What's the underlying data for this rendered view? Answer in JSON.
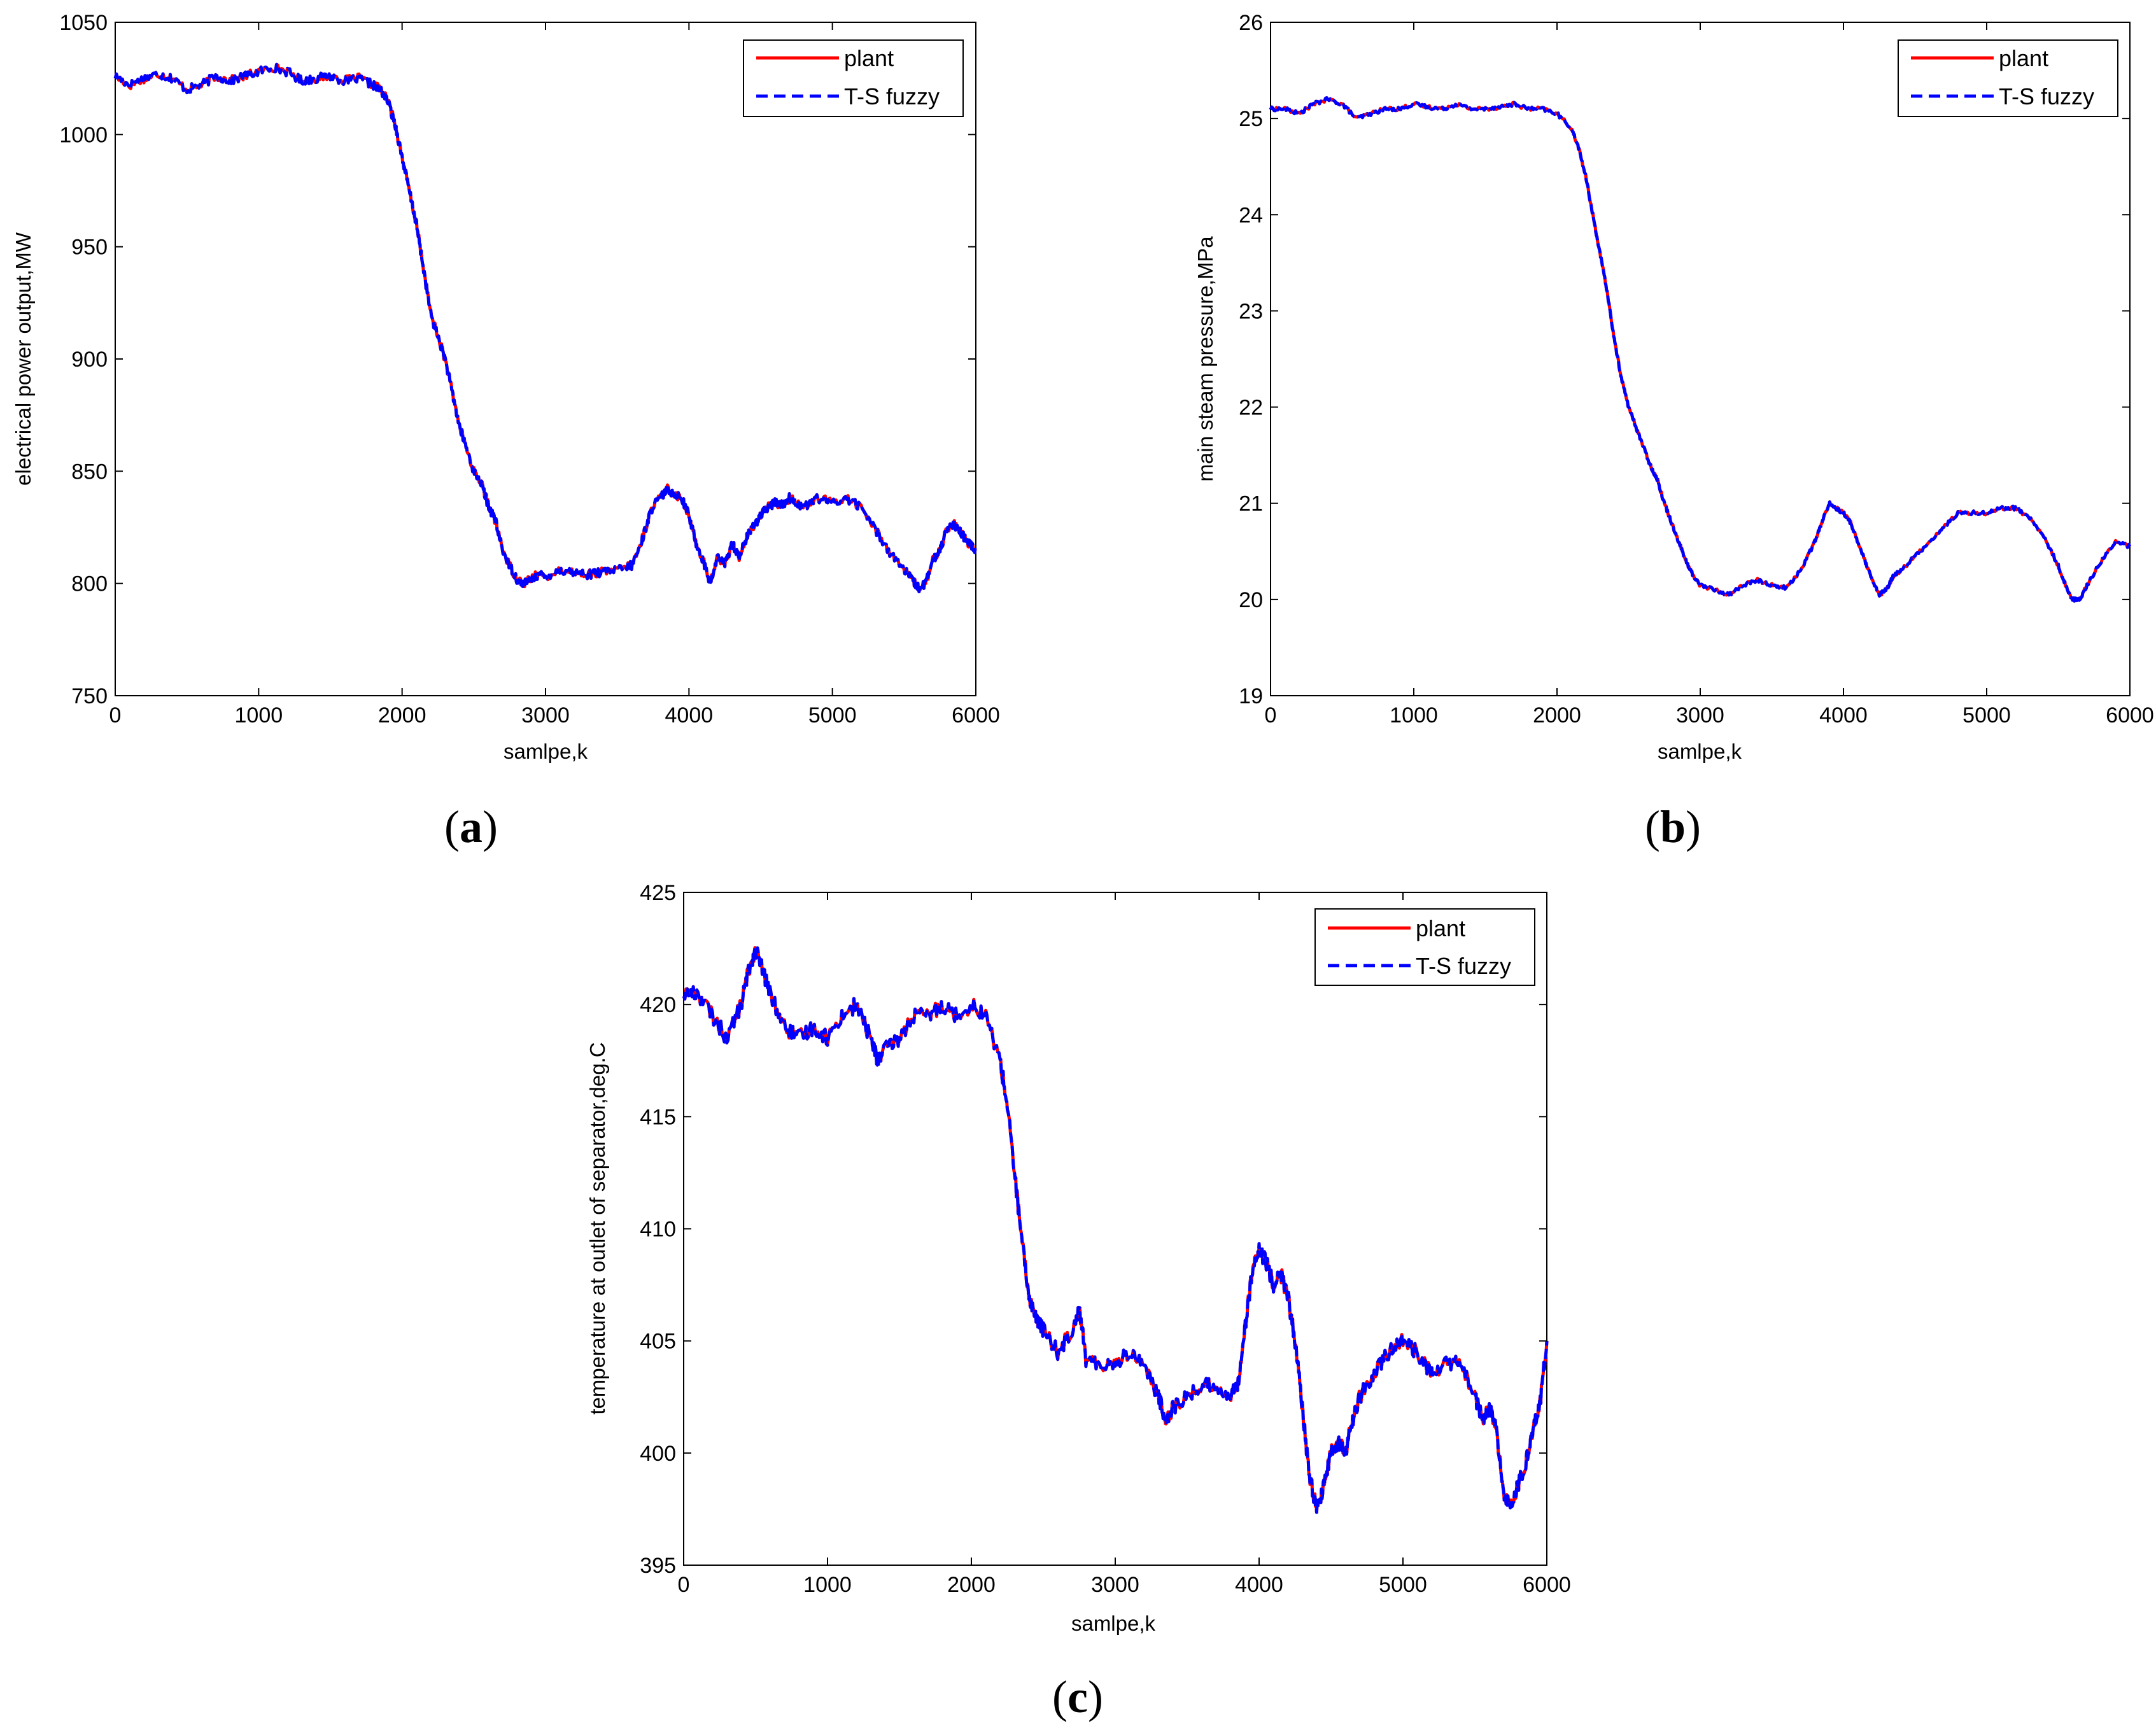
{
  "legend_labels": [
    "plant",
    "T-S fuzzy"
  ],
  "colors": {
    "plant": "#ff0000",
    "ts_fuzzy": "#0000ff",
    "axes": "#000000"
  },
  "chart_data": [
    {
      "id": "a",
      "type": "line",
      "caption_letter": "a",
      "xlabel": "samlpe,k",
      "ylabel": "electrical power output,MW",
      "xlim": [
        0,
        6000
      ],
      "ylim": [
        750,
        1050
      ],
      "xticks": [
        0,
        1000,
        2000,
        3000,
        4000,
        5000,
        6000
      ],
      "yticks": [
        750,
        800,
        850,
        900,
        950,
        1000,
        1050
      ],
      "legend_position": "top-right",
      "grid": false,
      "noise": 4,
      "series": [
        {
          "name": "plant",
          "color": "#ff0000",
          "style": "solid"
        },
        {
          "name": "T-S fuzzy",
          "color": "#0000ff",
          "style": "dashed"
        }
      ],
      "x": [
        0,
        100,
        200,
        300,
        400,
        500,
        600,
        700,
        800,
        900,
        1000,
        1100,
        1200,
        1300,
        1400,
        1500,
        1600,
        1700,
        1800,
        1850,
        1900,
        1950,
        2000,
        2050,
        2100,
        2150,
        2200,
        2250,
        2300,
        2350,
        2400,
        2450,
        2500,
        2550,
        2600,
        2650,
        2700,
        2750,
        2800,
        2850,
        2900,
        2950,
        3000,
        3100,
        3200,
        3300,
        3400,
        3500,
        3600,
        3650,
        3700,
        3750,
        3800,
        3850,
        3900,
        3950,
        4000,
        4050,
        4100,
        4150,
        4200,
        4250,
        4300,
        4350,
        4400,
        4450,
        4500,
        4550,
        4600,
        4650,
        4700,
        4750,
        4800,
        4900,
        5000,
        5100,
        5200,
        5300,
        5400,
        5500,
        5550,
        5600,
        5650,
        5700,
        5750,
        5800,
        5850,
        5900,
        5950,
        6000
      ],
      "y": [
        1026,
        1022,
        1025,
        1027,
        1025,
        1020,
        1022,
        1026,
        1024,
        1026,
        1028,
        1030,
        1028,
        1024,
        1025,
        1026,
        1024,
        1025,
        1022,
        1020,
        1015,
        1005,
        990,
        975,
        960,
        940,
        920,
        910,
        900,
        885,
        870,
        860,
        850,
        845,
        835,
        828,
        815,
        808,
        802,
        800,
        802,
        804,
        803,
        806,
        805,
        804,
        805,
        806,
        808,
        815,
        825,
        835,
        838,
        842,
        840,
        838,
        830,
        818,
        810,
        800,
        812,
        808,
        818,
        812,
        820,
        826,
        830,
        834,
        836,
        835,
        838,
        836,
        834,
        838,
        836,
        838,
        834,
        824,
        814,
        806,
        802,
        798,
        800,
        810,
        815,
        825,
        826,
        822,
        818,
        815
      ]
    },
    {
      "id": "b",
      "type": "line",
      "caption_letter": "b",
      "xlabel": "samlpe,k",
      "ylabel": "main steam pressure,MPa",
      "xlim": [
        0,
        6000
      ],
      "ylim": [
        19,
        26
      ],
      "xticks": [
        0,
        1000,
        2000,
        3000,
        4000,
        5000,
        6000
      ],
      "yticks": [
        19,
        20,
        21,
        22,
        23,
        24,
        25,
        26
      ],
      "legend_position": "top-right",
      "grid": false,
      "noise": 0.04,
      "series": [
        {
          "name": "plant",
          "color": "#ff0000",
          "style": "solid"
        },
        {
          "name": "T-S fuzzy",
          "color": "#0000ff",
          "style": "dashed"
        }
      ],
      "x": [
        0,
        100,
        200,
        300,
        400,
        500,
        600,
        700,
        800,
        900,
        1000,
        1100,
        1200,
        1300,
        1400,
        1500,
        1600,
        1700,
        1800,
        1900,
        2000,
        2100,
        2150,
        2200,
        2250,
        2300,
        2350,
        2400,
        2450,
        2500,
        2550,
        2600,
        2650,
        2700,
        2750,
        2800,
        2850,
        2900,
        2950,
        3000,
        3100,
        3200,
        3300,
        3400,
        3500,
        3600,
        3700,
        3800,
        3850,
        3900,
        3950,
        4000,
        4050,
        4100,
        4150,
        4200,
        4250,
        4300,
        4350,
        4400,
        4500,
        4600,
        4700,
        4800,
        4900,
        5000,
        5100,
        5200,
        5300,
        5400,
        5500,
        5550,
        5600,
        5650,
        5700,
        5800,
        5900,
        6000
      ],
      "y": [
        25.1,
        25.1,
        25.05,
        25.15,
        25.2,
        25.15,
        25.0,
        25.05,
        25.1,
        25.1,
        25.15,
        25.12,
        25.1,
        25.15,
        25.1,
        25.1,
        25.12,
        25.15,
        25.1,
        25.1,
        25.05,
        24.9,
        24.7,
        24.4,
        24.0,
        23.6,
        23.2,
        22.7,
        22.3,
        22.0,
        21.8,
        21.6,
        21.4,
        21.25,
        21.0,
        20.8,
        20.6,
        20.4,
        20.25,
        20.15,
        20.1,
        20.05,
        20.15,
        20.2,
        20.15,
        20.12,
        20.3,
        20.6,
        20.8,
        21.0,
        20.95,
        20.9,
        20.8,
        20.6,
        20.4,
        20.2,
        20.05,
        20.1,
        20.25,
        20.3,
        20.45,
        20.6,
        20.75,
        20.9,
        20.9,
        20.9,
        20.95,
        20.95,
        20.85,
        20.65,
        20.35,
        20.15,
        20.0,
        20.0,
        20.15,
        20.4,
        20.6,
        20.55
      ]
    },
    {
      "id": "c",
      "type": "line",
      "caption_letter": "c",
      "xlabel": "samlpe,k",
      "ylabel": "temperature at outlet of separator,deg.C",
      "xlim": [
        0,
        6000
      ],
      "ylim": [
        395,
        425
      ],
      "xticks": [
        0,
        1000,
        2000,
        3000,
        4000,
        5000,
        6000
      ],
      "yticks": [
        395,
        400,
        405,
        410,
        415,
        420,
        425
      ],
      "legend_position": "top-right",
      "grid": false,
      "noise": 0.7,
      "series": [
        {
          "name": "plant",
          "color": "#ff0000",
          "style": "solid"
        },
        {
          "name": "T-S fuzzy",
          "color": "#0000ff",
          "style": "dashed"
        }
      ],
      "x": [
        0,
        100,
        200,
        300,
        400,
        450,
        500,
        550,
        600,
        700,
        800,
        900,
        1000,
        1100,
        1200,
        1300,
        1350,
        1400,
        1500,
        1600,
        1700,
        1800,
        1900,
        2000,
        2100,
        2200,
        2250,
        2300,
        2350,
        2400,
        2450,
        2500,
        2600,
        2700,
        2750,
        2800,
        2900,
        3000,
        3100,
        3200,
        3300,
        3350,
        3400,
        3500,
        3600,
        3700,
        3800,
        3850,
        3900,
        3950,
        4000,
        4050,
        4100,
        4150,
        4200,
        4250,
        4300,
        4350,
        4400,
        4450,
        4500,
        4550,
        4600,
        4650,
        4700,
        4800,
        4900,
        5000,
        5100,
        5200,
        5300,
        5400,
        5500,
        5550,
        5600,
        5650,
        5700,
        5750,
        5800,
        5850,
        5900,
        5950,
        6000
      ],
      "y": [
        420.5,
        420.5,
        419.5,
        418.5,
        420.0,
        421.5,
        422.5,
        421.5,
        420.5,
        419.0,
        418.5,
        419.0,
        418.5,
        419.5,
        420.0,
        418.5,
        417.5,
        418.0,
        418.5,
        419.5,
        419.5,
        420.0,
        419.5,
        420.0,
        419.5,
        417.5,
        415.5,
        412.5,
        409.5,
        407.0,
        406.0,
        405.5,
        404.5,
        405.5,
        406.5,
        404.0,
        404.0,
        404.0,
        404.5,
        404.0,
        402.5,
        401.5,
        402.0,
        402.5,
        403.0,
        403.0,
        402.5,
        403.0,
        405.5,
        408.0,
        409.0,
        408.5,
        407.5,
        408.0,
        407.0,
        405.0,
        402.0,
        399.0,
        397.5,
        398.5,
        400.0,
        400.5,
        400.0,
        401.5,
        402.5,
        403.5,
        404.5,
        405.0,
        404.5,
        403.5,
        404.0,
        404.0,
        402.5,
        401.5,
        402.0,
        401.0,
        398.0,
        397.8,
        398.5,
        399.5,
        401.0,
        402.0,
        405.0
      ]
    }
  ]
}
